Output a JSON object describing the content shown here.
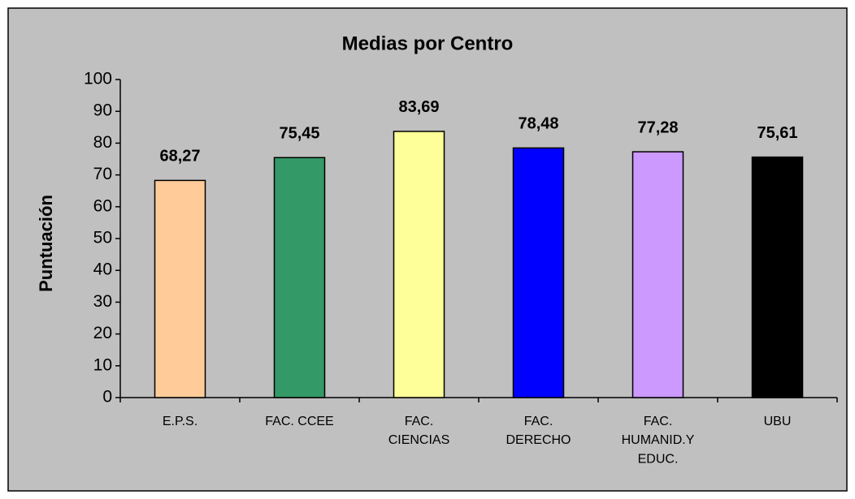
{
  "chart_data": {
    "type": "bar",
    "title": "Medias por Centro",
    "y_label": "Puntuación",
    "categories": [
      "E.P.S.",
      "FAC. CCEE",
      "FAC.\nCIENCIAS",
      "FAC.\nDERECHO",
      "FAC.\nHUMANID.Y\nEDUC.",
      "UBU"
    ],
    "values": [
      68.27,
      75.45,
      83.69,
      78.48,
      77.28,
      75.61
    ],
    "value_labels": [
      "68,27",
      "75,45",
      "83,69",
      "78,48",
      "77,28",
      "75,61"
    ],
    "colors": [
      "#ffcc99",
      "#339966",
      "#ffff99",
      "#0000ff",
      "#cc99ff",
      "#000000"
    ],
    "ylim": [
      0,
      100
    ],
    "yticks": [
      0,
      10,
      20,
      30,
      40,
      50,
      60,
      70,
      80,
      90,
      100
    ],
    "grid": false
  }
}
